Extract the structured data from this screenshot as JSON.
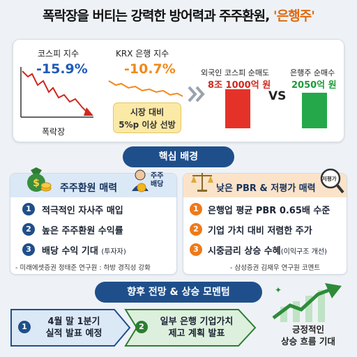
{
  "title": {
    "main": "폭락장을 버티는 강력한 방어력과 주주환원, ",
    "highlight": "'은행주'"
  },
  "top_panel": {
    "kospi": {
      "label": "코스피 지수",
      "value": "-15.9%",
      "caption": "폭락장"
    },
    "krx_bank": {
      "label": "KRX 은행 지수",
      "value": "-10.7%",
      "callout_line1": "시장 대비",
      "callout_line2": "5%p 이상 선방"
    },
    "foreign_sell": {
      "label": "외국인 코스피 순매도",
      "value": "8조 1000억 원"
    },
    "vs": "VS",
    "bank_buy": {
      "label": "은행주 순매수",
      "value": "2050억 원"
    }
  },
  "core_section": {
    "label": "핵심 배경"
  },
  "left_card": {
    "title": "주주환원 매력",
    "badge_line1": "주주",
    "badge_line2": "배당",
    "items": [
      {
        "num": "1",
        "text": "적극적인 자사주 매입",
        "note": ""
      },
      {
        "num": "2",
        "text": "높은 주주환원 수익률",
        "note": ""
      },
      {
        "num": "3",
        "text": "배당 수익 기대 ",
        "note": "(투자자)"
      }
    ],
    "source": "- 미래에셋증권 정태준 연구원 : 하방 경직성 강화"
  },
  "right_card": {
    "title": "낮은 PBR & 저평가 매력",
    "badge": "저평가",
    "items": [
      {
        "num": "1",
        "text": "은행업 평균 PBR 0.65배 수준",
        "note": ""
      },
      {
        "num": "2",
        "text": "기업 가치 대비 저렴한 주가",
        "note": ""
      },
      {
        "num": "3",
        "text": "시중금리 상승 수혜",
        "note": "(이익구조 개선)"
      }
    ],
    "source": "- 삼성증권 김재우 연구원 코멘트"
  },
  "outlook_section": {
    "label": "향후 전망 & 상승 모멘텀"
  },
  "outlook": {
    "step1": {
      "num": "1",
      "line1": "4월 말 1분기",
      "line2": "실적 발표 예정"
    },
    "step2": {
      "num": "2",
      "line1": "일부 은행 기업가치",
      "line2": "제고 계획 발표"
    },
    "result": {
      "line1": "긍정적인",
      "line2": "상승 흐름 기대"
    }
  },
  "colors": {
    "navy": "#1f4f8b",
    "accent_orange": "#e06a12",
    "sell_red": "#e53229",
    "buy_green": "#25a84a",
    "left_card_head": "#dbe8f6",
    "right_card_head": "#fbe3c9"
  }
}
